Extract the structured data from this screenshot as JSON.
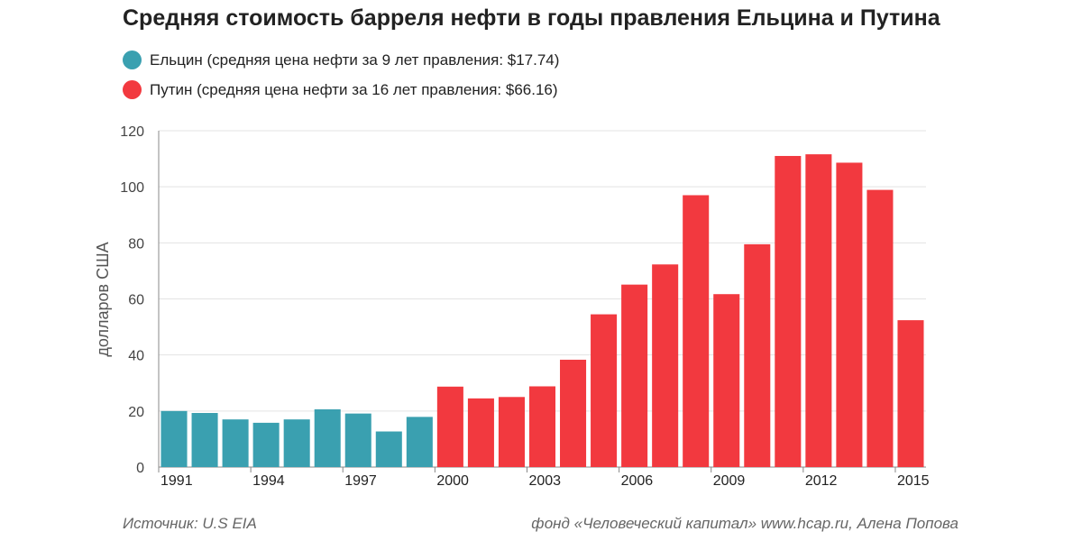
{
  "title": "Средняя стоимость барреля нефти в годы правления Ельцина и Путина",
  "legend": [
    {
      "label": "Ельцин (средняя цена нефти за 9 лет правления: $17.74)",
      "color": "#3aa0b0"
    },
    {
      "label": "Путин (средняя цена нефти за 16 лет правления: $66.16)",
      "color": "#f2393f"
    }
  ],
  "footer": {
    "source": "Источник: U.S EIA",
    "credit": "фонд «Человеческий капитал» www.hcap.ru, Алена Попова"
  },
  "chart_data": {
    "type": "bar",
    "title": "Средняя стоимость барреля нефти в годы правления Ельцина и Путина",
    "ylabel": "долларов США",
    "ylim": [
      0,
      120
    ],
    "yticks": [
      0,
      20,
      40,
      60,
      80,
      100,
      120
    ],
    "xtick_labels": [
      "1991",
      "1994",
      "1997",
      "2000",
      "2003",
      "2006",
      "2009",
      "2012",
      "2015"
    ],
    "grid": true,
    "legend_position": "top-left",
    "categories": [
      "1991",
      "1992",
      "1993",
      "1994",
      "1995",
      "1996",
      "1997",
      "1998",
      "1999",
      "2000",
      "2001",
      "2002",
      "2003",
      "2004",
      "2005",
      "2006",
      "2007",
      "2008",
      "2009",
      "2010",
      "2011",
      "2012",
      "2013",
      "2014",
      "2015"
    ],
    "series": [
      {
        "name": "Ельцин (средняя цена нефти за 9 лет правления: $17.74)",
        "color": "#3aa0b0",
        "values": [
          20.0,
          19.3,
          17.0,
          15.8,
          17.0,
          20.6,
          19.1,
          12.7,
          17.9,
          null,
          null,
          null,
          null,
          null,
          null,
          null,
          null,
          null,
          null,
          null,
          null,
          null,
          null,
          null,
          null
        ]
      },
      {
        "name": "Путин (средняя цена нефти за 16 лет правления: $66.16)",
        "color": "#f2393f",
        "values": [
          null,
          null,
          null,
          null,
          null,
          null,
          null,
          null,
          null,
          28.7,
          24.5,
          25.0,
          28.8,
          38.3,
          54.5,
          65.1,
          72.3,
          97.0,
          61.7,
          79.5,
          111.0,
          111.6,
          108.6,
          98.9,
          52.4
        ]
      }
    ]
  }
}
